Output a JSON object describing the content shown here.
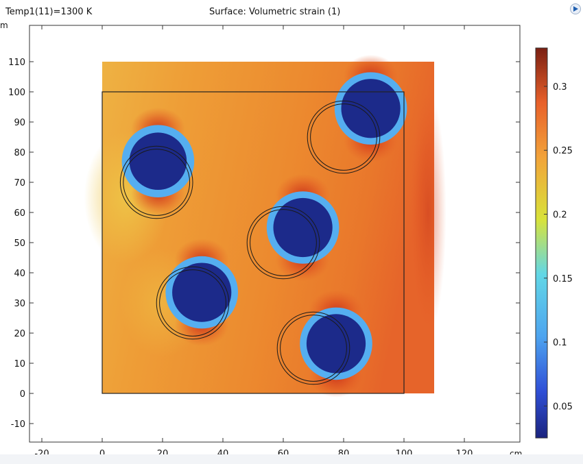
{
  "header": {
    "status_text": "Temp1(11)=1300 K",
    "title": "Surface: Volumetric strain (1)",
    "y_unit": "m"
  },
  "chart_data": {
    "type": "heatmap",
    "title": "Surface: Volumetric strain (1)",
    "xlabel": "cm",
    "ylabel": "",
    "xlim": [
      -20,
      140
    ],
    "ylim": [
      -15,
      120
    ],
    "x_ticks": [
      -20,
      0,
      20,
      40,
      60,
      80,
      100,
      120
    ],
    "y_ticks": [
      -10,
      0,
      10,
      20,
      30,
      40,
      50,
      60,
      70,
      80,
      90,
      100,
      110
    ],
    "x_tick_labels": [
      "-20",
      "0",
      "20",
      "40",
      "60",
      "80",
      "100",
      "120"
    ],
    "y_tick_labels": [
      "-10",
      "0",
      "10",
      "20",
      "30",
      "40",
      "50",
      "60",
      "70",
      "80",
      "90",
      "100",
      "110"
    ],
    "colorbar": {
      "min": 0.025,
      "max": 0.33,
      "ticks": [
        0.05,
        0.1,
        0.15,
        0.2,
        0.25,
        0.3
      ],
      "tick_labels": [
        "0.05",
        "0.1",
        "0.15",
        "0.2",
        "0.25",
        "0.3"
      ],
      "colormap": [
        "#1a237e",
        "#2f4fd6",
        "#4ea4ef",
        "#62d7e6",
        "#d8e23a",
        "#f2a33a",
        "#e8602a",
        "#7a1f12"
      ]
    },
    "undeformed_domain": {
      "x": [
        0,
        100
      ],
      "y": [
        0,
        100
      ]
    },
    "deformed_domain_corners": [
      [
        0,
        110
      ],
      [
        110,
        110
      ],
      [
        110,
        0
      ],
      [
        0,
        0
      ]
    ],
    "inclusions": [
      {
        "x": 18.5,
        "y": 77,
        "outer_r": 12,
        "inner_r": 9.5,
        "orig_x": 18,
        "orig_y": 70,
        "orig_r": [
          11,
          12
        ]
      },
      {
        "x": 89,
        "y": 94.5,
        "outer_r": 12,
        "inner_r": 9.8,
        "orig_x": 80,
        "orig_y": 85,
        "orig_r": [
          11,
          12
        ]
      },
      {
        "x": 66.5,
        "y": 55,
        "outer_r": 12,
        "inner_r": 9.8,
        "orig_x": 60,
        "orig_y": 50,
        "orig_r": [
          11,
          12
        ]
      },
      {
        "x": 33,
        "y": 33.5,
        "outer_r": 12,
        "inner_r": 9.8,
        "orig_x": 30,
        "orig_y": 30,
        "orig_r": [
          11,
          12
        ]
      },
      {
        "x": 77.5,
        "y": 16.5,
        "outer_r": 12,
        "inner_r": 9.8,
        "orig_x": 70,
        "orig_y": 15,
        "orig_r": [
          11,
          12
        ]
      }
    ],
    "field_colors": {
      "matrix": "#ec8f30",
      "matrix_hot": "#e55a25",
      "matrix_cool": "#eeb042",
      "inclusion_core": "#1c2a8a",
      "inclusion_rim": "#55aef0"
    }
  }
}
